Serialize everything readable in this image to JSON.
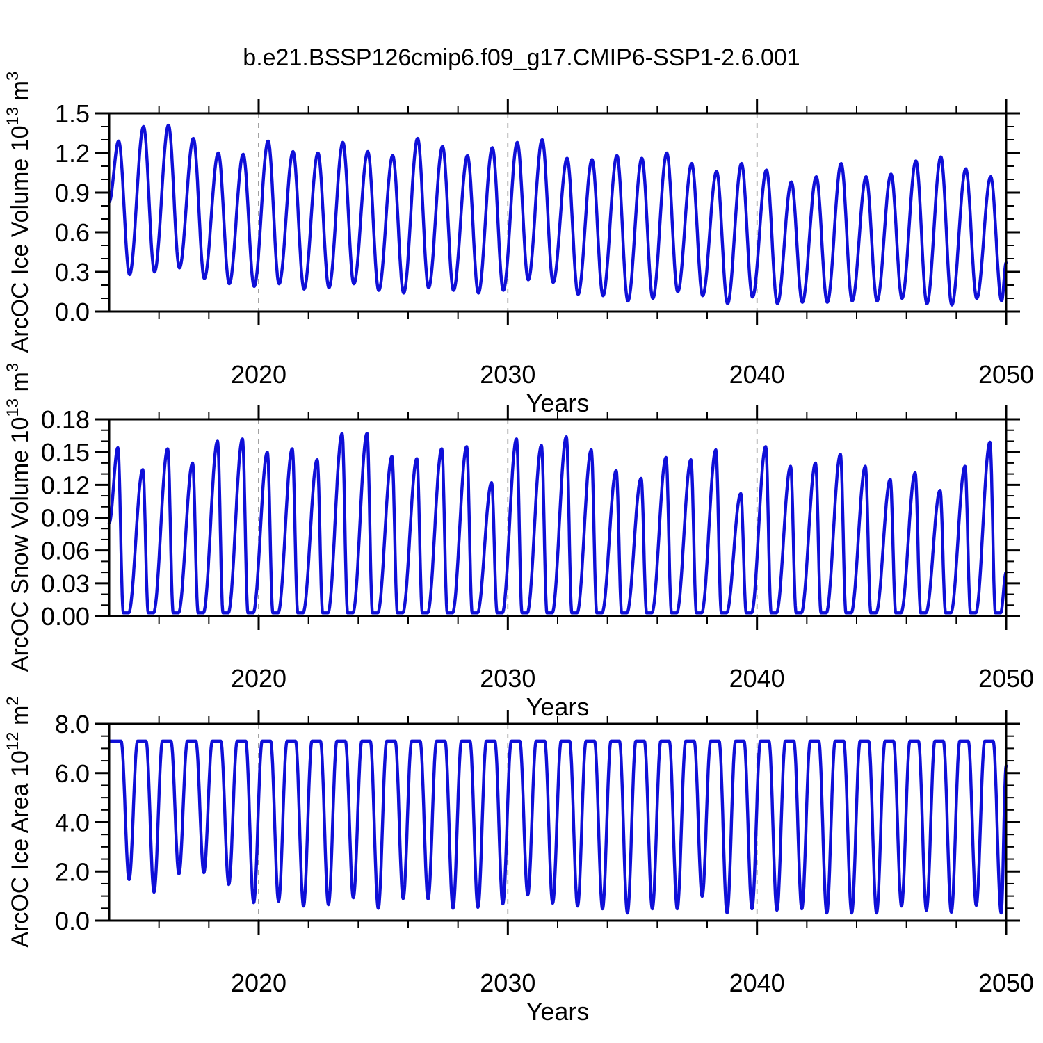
{
  "title": "b.e21.BSSP126cmip6.f09_g17.CMIP6-SSP1-2.6.001",
  "chart_data": {
    "type": "line",
    "grid": "vertical-dashed-only",
    "legend": "none",
    "line_color": "#0f0fd8",
    "grid_color": "#8c8c8c",
    "axis_color": "#000000",
    "x_axis": {
      "label": "Years",
      "xlim": [
        2014.0,
        2050.0
      ],
      "major_ticks": [
        2020,
        2030,
        2040,
        2050
      ],
      "tick_labels": [
        "2020",
        "2030",
        "2040",
        "2050"
      ],
      "minor_ticks": [
        2016,
        2018,
        2022,
        2024,
        2026,
        2028,
        2032,
        2034,
        2036,
        2038,
        2042,
        2044,
        2046,
        2048
      ],
      "grid_years": [
        2020,
        2030,
        2040
      ]
    },
    "panels": [
      {
        "id": "ice-volume",
        "ylabel_prefix": "ArcOC Ice Volume 10",
        "ylabel_sup1": "13",
        "ylabel_mid": " m",
        "ylabel_sup2": "3",
        "ylim": [
          0,
          1.5
        ],
        "ytick_vals": [
          0.0,
          0.3,
          0.6,
          0.9,
          1.2,
          1.5
        ],
        "ytick_labels": [
          "0.0",
          "0.3",
          "0.6",
          "0.9",
          "1.2",
          "1.5"
        ],
        "yminor_per_major": 3,
        "shape": {
          "type": "sin",
          "tmax": 0.38,
          "tmin": 0.82
        },
        "start": {
          "t": 2014.0,
          "v": 0.83
        },
        "end": [
          {
            "t": 2050.0,
            "v": 0.37
          }
        ],
        "cycles": [
          {
            "year": 2014,
            "max": 1.29,
            "min": 0.28
          },
          {
            "year": 2015,
            "max": 1.4,
            "min": 0.3
          },
          {
            "year": 2016,
            "max": 1.41,
            "min": 0.33
          },
          {
            "year": 2017,
            "max": 1.31,
            "min": 0.25
          },
          {
            "year": 2018,
            "max": 1.2,
            "min": 0.21
          },
          {
            "year": 2019,
            "max": 1.19,
            "min": 0.19
          },
          {
            "year": 2020,
            "max": 1.29,
            "min": 0.21
          },
          {
            "year": 2021,
            "max": 1.21,
            "min": 0.17
          },
          {
            "year": 2022,
            "max": 1.2,
            "min": 0.18
          },
          {
            "year": 2023,
            "max": 1.28,
            "min": 0.21
          },
          {
            "year": 2024,
            "max": 1.21,
            "min": 0.16
          },
          {
            "year": 2025,
            "max": 1.18,
            "min": 0.14
          },
          {
            "year": 2026,
            "max": 1.31,
            "min": 0.18
          },
          {
            "year": 2027,
            "max": 1.25,
            "min": 0.16
          },
          {
            "year": 2028,
            "max": 1.18,
            "min": 0.14
          },
          {
            "year": 2029,
            "max": 1.24,
            "min": 0.16
          },
          {
            "year": 2030,
            "max": 1.28,
            "min": 0.24
          },
          {
            "year": 2031,
            "max": 1.3,
            "min": 0.22
          },
          {
            "year": 2032,
            "max": 1.16,
            "min": 0.13
          },
          {
            "year": 2033,
            "max": 1.15,
            "min": 0.12
          },
          {
            "year": 2034,
            "max": 1.18,
            "min": 0.08
          },
          {
            "year": 2035,
            "max": 1.16,
            "min": 0.1
          },
          {
            "year": 2036,
            "max": 1.2,
            "min": 0.15
          },
          {
            "year": 2037,
            "max": 1.12,
            "min": 0.12
          },
          {
            "year": 2038,
            "max": 1.06,
            "min": 0.06
          },
          {
            "year": 2039,
            "max": 1.12,
            "min": 0.11
          },
          {
            "year": 2040,
            "max": 1.07,
            "min": 0.06
          },
          {
            "year": 2041,
            "max": 0.98,
            "min": 0.07
          },
          {
            "year": 2042,
            "max": 1.02,
            "min": 0.07
          },
          {
            "year": 2043,
            "max": 1.12,
            "min": 0.08
          },
          {
            "year": 2044,
            "max": 1.02,
            "min": 0.08
          },
          {
            "year": 2045,
            "max": 1.04,
            "min": 0.1
          },
          {
            "year": 2046,
            "max": 1.14,
            "min": 0.06
          },
          {
            "year": 2047,
            "max": 1.17,
            "min": 0.05
          },
          {
            "year": 2048,
            "max": 1.08,
            "min": 0.1
          },
          {
            "year": 2049,
            "max": 1.02,
            "min": 0.08
          }
        ]
      },
      {
        "id": "snow-volume",
        "ylabel_prefix": "ArcOC Snow Volume 10",
        "ylabel_sup1": "13",
        "ylabel_mid": " m",
        "ylabel_sup2": "3",
        "ylim": [
          0,
          0.18
        ],
        "ytick_vals": [
          0.0,
          0.03,
          0.06,
          0.09,
          0.12,
          0.15,
          0.18
        ],
        "ytick_labels": [
          "0.00",
          "0.03",
          "0.06",
          "0.09",
          "0.12",
          "0.15",
          "0.18"
        ],
        "yminor_per_major": 3,
        "shape": {
          "type": "snow",
          "tmax": 0.35,
          "z0": 0.57,
          "z1": 0.78,
          "zmin": 0.003
        },
        "start": {
          "t": 2014.0,
          "v": 0.085
        },
        "end": [
          {
            "t": 2050.0,
            "v": 0.04
          }
        ],
        "cycles": [
          {
            "year": 2014,
            "max": 0.154
          },
          {
            "year": 2015,
            "max": 0.134
          },
          {
            "year": 2016,
            "max": 0.153
          },
          {
            "year": 2017,
            "max": 0.14
          },
          {
            "year": 2018,
            "max": 0.16
          },
          {
            "year": 2019,
            "max": 0.162
          },
          {
            "year": 2020,
            "max": 0.15
          },
          {
            "year": 2021,
            "max": 0.153
          },
          {
            "year": 2022,
            "max": 0.143
          },
          {
            "year": 2023,
            "max": 0.167
          },
          {
            "year": 2024,
            "max": 0.167
          },
          {
            "year": 2025,
            "max": 0.146
          },
          {
            "year": 2026,
            "max": 0.144
          },
          {
            "year": 2027,
            "max": 0.153
          },
          {
            "year": 2028,
            "max": 0.155
          },
          {
            "year": 2029,
            "max": 0.122
          },
          {
            "year": 2030,
            "max": 0.162
          },
          {
            "year": 2031,
            "max": 0.156
          },
          {
            "year": 2032,
            "max": 0.164
          },
          {
            "year": 2033,
            "max": 0.152
          },
          {
            "year": 2034,
            "max": 0.133
          },
          {
            "year": 2035,
            "max": 0.126
          },
          {
            "year": 2036,
            "max": 0.145
          },
          {
            "year": 2037,
            "max": 0.143
          },
          {
            "year": 2038,
            "max": 0.152
          },
          {
            "year": 2039,
            "max": 0.112
          },
          {
            "year": 2040,
            "max": 0.155
          },
          {
            "year": 2041,
            "max": 0.137
          },
          {
            "year": 2042,
            "max": 0.14
          },
          {
            "year": 2043,
            "max": 0.148
          },
          {
            "year": 2044,
            "max": 0.137
          },
          {
            "year": 2045,
            "max": 0.125
          },
          {
            "year": 2046,
            "max": 0.131
          },
          {
            "year": 2047,
            "max": 0.115
          },
          {
            "year": 2048,
            "max": 0.137
          },
          {
            "year": 2049,
            "max": 0.159
          }
        ]
      },
      {
        "id": "ice-area",
        "ylabel_prefix": "ArcOC Ice Area 10",
        "ylabel_sup1": "12",
        "ylabel_mid": " m",
        "ylabel_sup2": "2",
        "ylim": [
          0,
          8
        ],
        "ytick_vals": [
          0.0,
          2.0,
          4.0,
          6.0,
          8.0
        ],
        "ytick_labels": [
          "0.0",
          "2.0",
          "4.0",
          "6.0",
          "8.0"
        ],
        "yminor_per_major": 4,
        "shape": {
          "type": "area",
          "plateau": 7.3,
          "pe": 0.48,
          "tmin": 0.8,
          "pr": 1.14
        },
        "start": {
          "t": 2014.0,
          "v": 7.3
        },
        "end": [
          {
            "t": 2050.0,
            "v": 6.3
          }
        ],
        "cycles": [
          {
            "year": 2014,
            "min": 1.67
          },
          {
            "year": 2015,
            "min": 1.16
          },
          {
            "year": 2016,
            "min": 1.9
          },
          {
            "year": 2017,
            "min": 1.95
          },
          {
            "year": 2018,
            "min": 1.47
          },
          {
            "year": 2019,
            "min": 0.73
          },
          {
            "year": 2020,
            "min": 0.79
          },
          {
            "year": 2021,
            "min": 0.59
          },
          {
            "year": 2022,
            "min": 0.65
          },
          {
            "year": 2023,
            "min": 0.93
          },
          {
            "year": 2024,
            "min": 0.5
          },
          {
            "year": 2025,
            "min": 0.9
          },
          {
            "year": 2026,
            "min": 0.88
          },
          {
            "year": 2027,
            "min": 0.5
          },
          {
            "year": 2028,
            "min": 0.54
          },
          {
            "year": 2029,
            "min": 0.68
          },
          {
            "year": 2030,
            "min": 1.05
          },
          {
            "year": 2031,
            "min": 0.71
          },
          {
            "year": 2032,
            "min": 0.59
          },
          {
            "year": 2033,
            "min": 0.48
          },
          {
            "year": 2034,
            "min": 0.31
          },
          {
            "year": 2035,
            "min": 0.48
          },
          {
            "year": 2036,
            "min": 0.48
          },
          {
            "year": 2037,
            "min": 0.99
          },
          {
            "year": 2038,
            "min": 0.31
          },
          {
            "year": 2039,
            "min": 0.48
          },
          {
            "year": 2040,
            "min": 0.42
          },
          {
            "year": 2041,
            "min": 0.48
          },
          {
            "year": 2042,
            "min": 0.31
          },
          {
            "year": 2043,
            "min": 0.31
          },
          {
            "year": 2044,
            "min": 0.31
          },
          {
            "year": 2045,
            "min": 0.59
          },
          {
            "year": 2046,
            "min": 0.42
          },
          {
            "year": 2047,
            "min": 0.34
          },
          {
            "year": 2048,
            "min": 0.62
          },
          {
            "year": 2049,
            "min": 0.31
          }
        ]
      }
    ]
  }
}
